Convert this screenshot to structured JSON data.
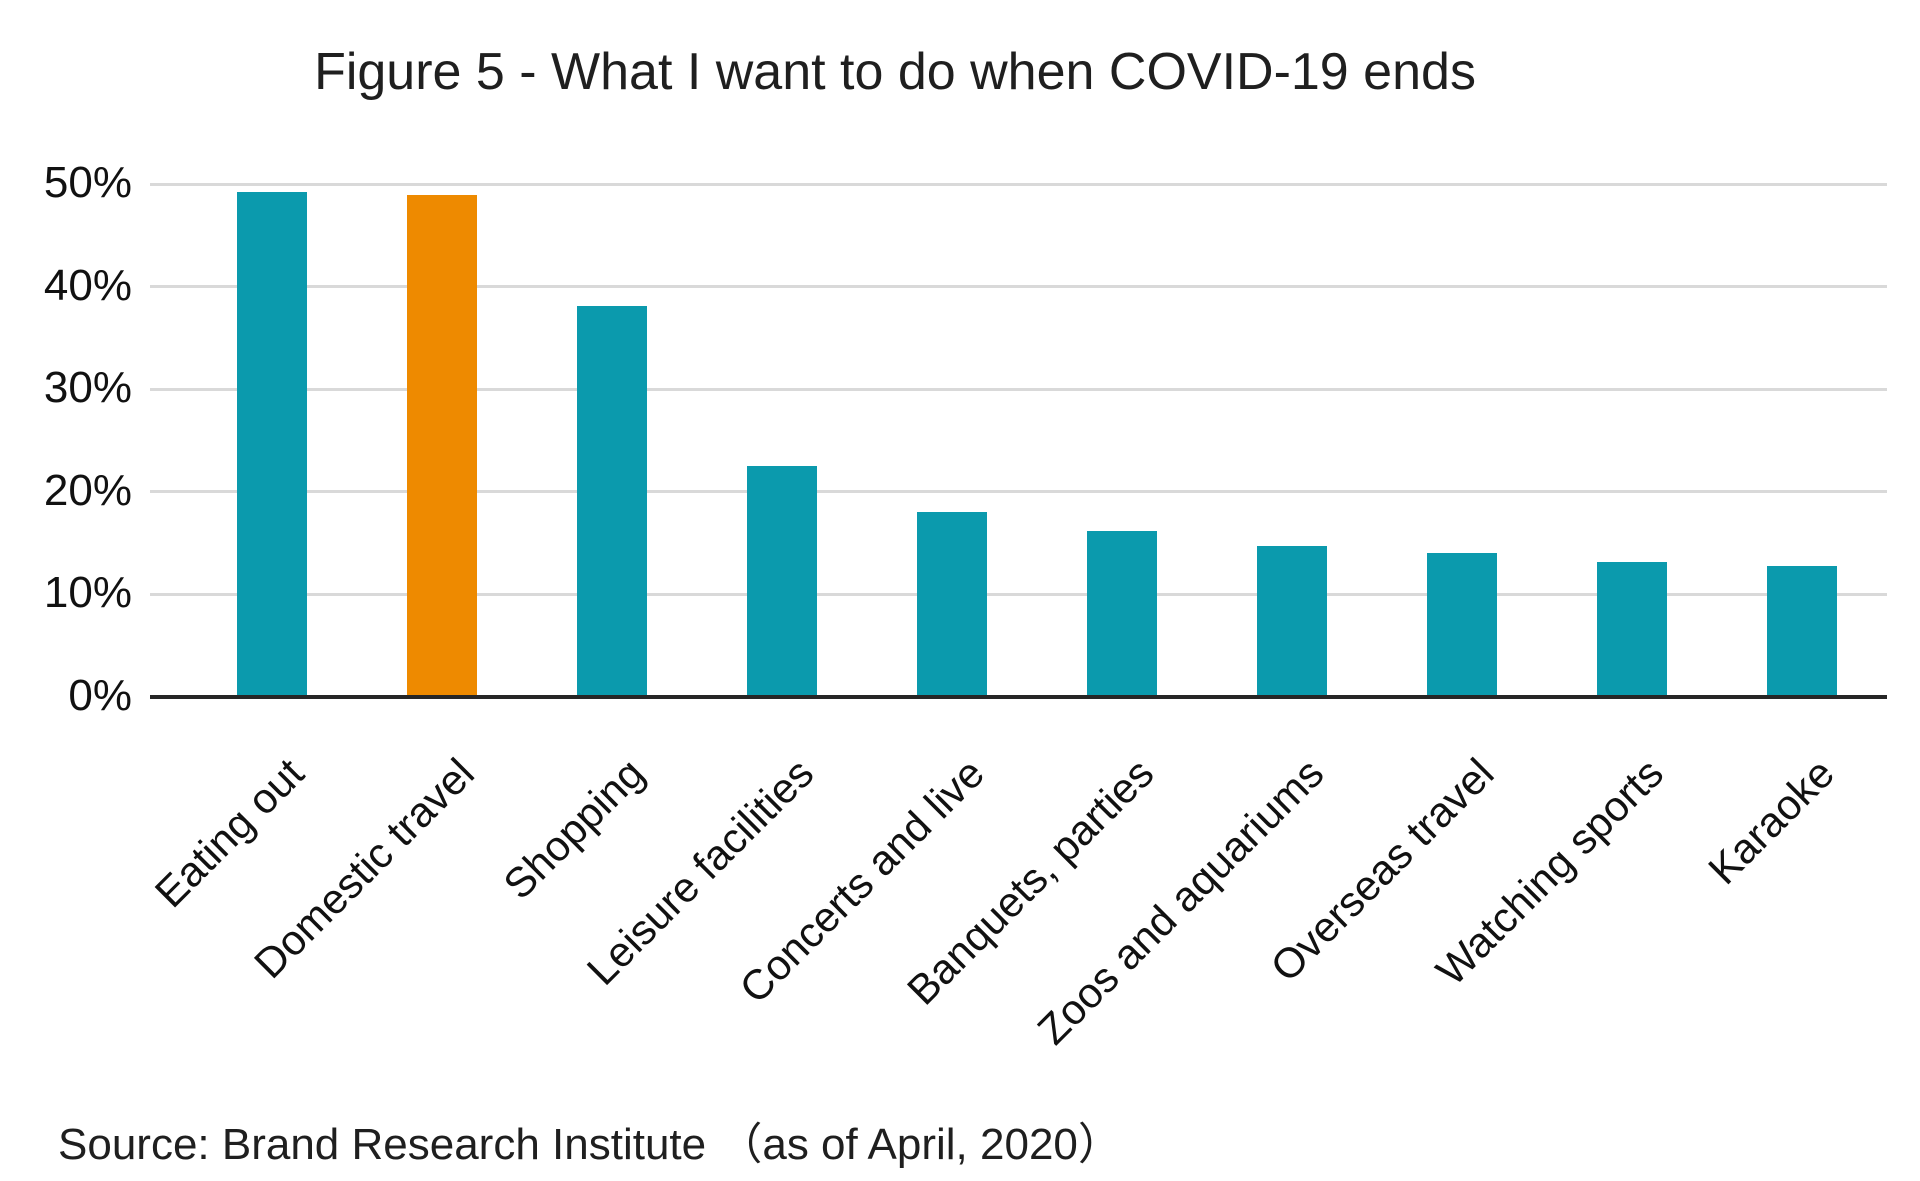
{
  "title": "Figure 5 - What I want to do when COVID-19 ends",
  "source": {
    "text": "Source: Brand Research Institute （as of April, 2020）"
  },
  "chart_data": {
    "type": "bar",
    "title": "Figure 5 - What I want to do when COVID-19 ends",
    "categories": [
      "Eating out",
      "Domestic travel",
      "Shopping",
      "Leisure facilities",
      "Concerts and live",
      "Banquets, parties",
      "Zoos and aquariums",
      "Overseas travel",
      "Watching sports",
      "Karaoke"
    ],
    "values": [
      49.2,
      48.9,
      38.1,
      22.5,
      18.0,
      16.2,
      14.7,
      14.0,
      13.2,
      12.8
    ],
    "unit": "%",
    "xlabel": "",
    "ylabel": "",
    "ylim": [
      0,
      50
    ],
    "yticks": [
      0,
      10,
      20,
      30,
      40,
      50
    ],
    "ytick_labels": [
      "0%",
      "10%",
      "20%",
      "30%",
      "40%",
      "50%"
    ],
    "grid": "horizontal-light-gray",
    "legend": "none",
    "xlabel_rotation_deg": -45,
    "highlight_index": 1,
    "colors": {
      "bar_default": "#0b9aad",
      "bar_highlight": "#ee8a00",
      "gridline": "#d9d9d9",
      "axis": "#262626",
      "text": "#1a1a1a"
    },
    "source": "Source: Brand Research Institute （as of April, 2020）"
  }
}
